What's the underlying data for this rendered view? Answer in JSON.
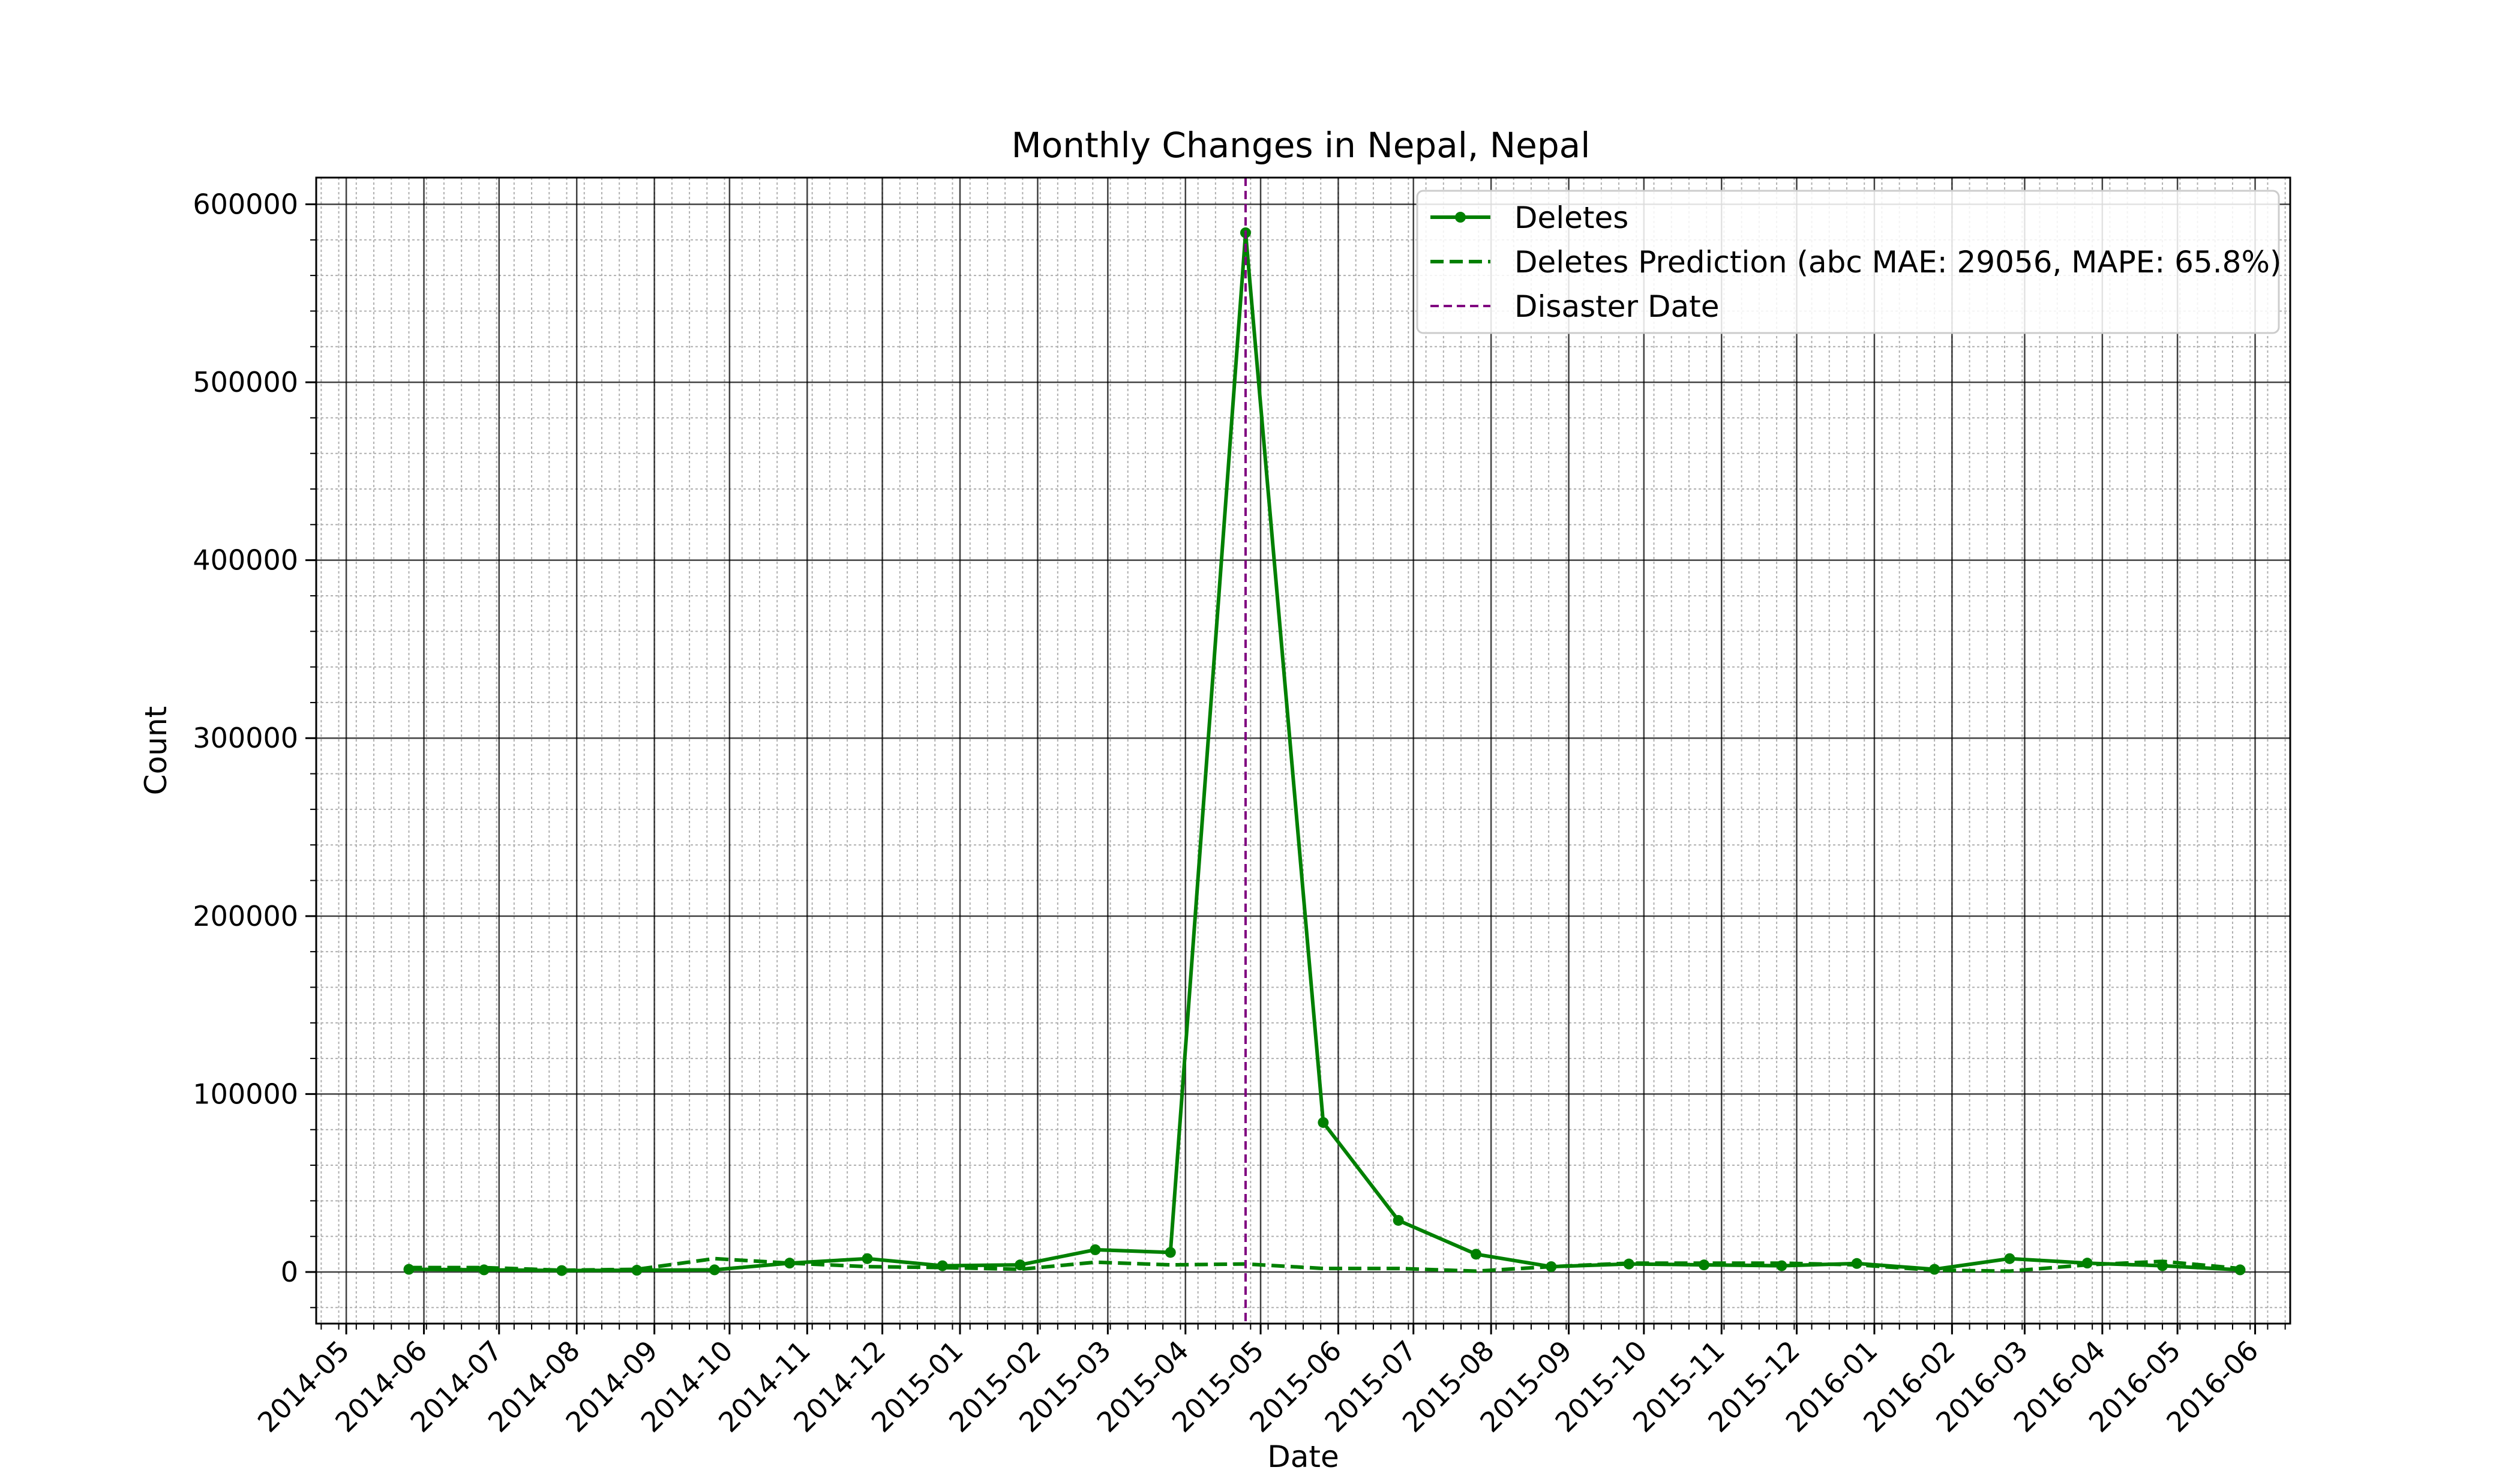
{
  "chart_data": {
    "type": "line",
    "title": "Monthly Changes in Nepal, Nepal",
    "xlabel": "Date",
    "ylabel": "Count",
    "x_ticks": [
      "2014-05",
      "2014-06",
      "2014-07",
      "2014-08",
      "2014-09",
      "2014-10",
      "2014-11",
      "2014-12",
      "2015-01",
      "2015-02",
      "2015-03",
      "2015-04",
      "2015-05",
      "2015-06",
      "2015-07",
      "2015-08",
      "2015-09",
      "2015-10",
      "2015-11",
      "2015-12",
      "2016-01",
      "2016-02",
      "2016-03",
      "2016-04",
      "2016-05",
      "2016-06"
    ],
    "y_ticks": [
      "0",
      "100000",
      "200000",
      "300000",
      "400000",
      "500000",
      "600000"
    ],
    "xlim": [
      "2014-04-19",
      "2016-06-15"
    ],
    "ylim": [
      -29000,
      615000
    ],
    "grid": true,
    "legend_position": "top-right",
    "x": [
      "2014-05-26",
      "2014-06-25",
      "2014-07-26",
      "2014-08-25",
      "2014-09-25",
      "2014-10-25",
      "2014-11-25",
      "2014-12-25",
      "2015-01-25",
      "2015-02-24",
      "2015-03-26",
      "2015-04-25",
      "2015-05-26",
      "2015-06-25",
      "2015-07-26",
      "2015-08-25",
      "2015-09-25",
      "2015-10-25",
      "2015-11-25",
      "2015-12-25",
      "2016-01-25",
      "2016-02-24",
      "2016-03-26",
      "2016-04-25",
      "2016-05-26"
    ],
    "series": [
      {
        "name": "Deletes",
        "style": "solid-marker",
        "color": "#008000",
        "values": [
          1500,
          1200,
          800,
          1000,
          1200,
          5000,
          7500,
          3500,
          4000,
          12500,
          11000,
          584000,
          84000,
          29000,
          10000,
          3000,
          4500,
          4000,
          3500,
          4800,
          1500,
          7500,
          5000,
          3500,
          1200
        ]
      },
      {
        "name": "Deletes Prediction (abc MAE: 29056, MAPE: 65.8%)",
        "style": "dashed",
        "color": "#008000",
        "values": [
          2500,
          2500,
          1000,
          1500,
          7500,
          5000,
          3000,
          2500,
          1500,
          5500,
          4000,
          4500,
          2000,
          2000,
          500,
          3000,
          5000,
          5000,
          5000,
          4000,
          1000,
          500,
          4000,
          6000,
          2000
        ]
      }
    ],
    "annotations": [
      {
        "name": "Disaster Date",
        "type": "vline",
        "x": "2015-04-25",
        "color": "#800080",
        "style": "dashed"
      }
    ]
  }
}
